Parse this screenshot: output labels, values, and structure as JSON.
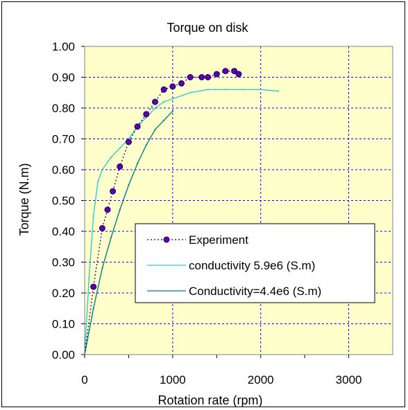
{
  "chart_data": {
    "type": "line",
    "title": "Torque on disk",
    "xlabel": "Rotation rate (rpm)",
    "ylabel": "Torque (N.m)",
    "xlim": [
      0,
      3500
    ],
    "ylim": [
      0,
      1.0
    ],
    "x_ticks": [
      "0",
      "1000",
      "2000",
      "3000"
    ],
    "y_ticks": [
      "0.00",
      "0.10",
      "0.20",
      "0.30",
      "0.40",
      "0.50",
      "0.60",
      "0.70",
      "0.80",
      "0.90",
      "1.00"
    ],
    "grid": true,
    "grid_style": "dashed",
    "plot_background": "#ffffcc",
    "legend_position": "lower-center",
    "series": [
      {
        "name": "Experiment",
        "color": "#000080",
        "marker_color": "#660099",
        "line_style": "dotted",
        "marker": "circle",
        "x": [
          0,
          100,
          200,
          260,
          320,
          400,
          500,
          600,
          700,
          800,
          900,
          1000,
          1100,
          1200,
          1330,
          1400,
          1500,
          1600,
          1700,
          1750
        ],
        "y": [
          0.0,
          0.22,
          0.41,
          0.47,
          0.53,
          0.61,
          0.69,
          0.74,
          0.78,
          0.82,
          0.86,
          0.87,
          0.88,
          0.9,
          0.9,
          0.9,
          0.91,
          0.92,
          0.92,
          0.91
        ]
      },
      {
        "name": "conductivity 5.9e6 (S.m)",
        "color": "#33cccc",
        "line_style": "solid",
        "marker": "none",
        "x": [
          0,
          50,
          100,
          150,
          200,
          300,
          400,
          500,
          600,
          700,
          800,
          900,
          1000,
          1200,
          1400,
          1600,
          1800,
          2000,
          2200
        ],
        "y": [
          0.0,
          0.25,
          0.45,
          0.56,
          0.6,
          0.64,
          0.67,
          0.7,
          0.74,
          0.77,
          0.8,
          0.82,
          0.83,
          0.85,
          0.86,
          0.86,
          0.86,
          0.86,
          0.855
        ]
      },
      {
        "name": "Conductivity=4.4e6 (S.m)",
        "color": "#008080",
        "line_style": "solid",
        "marker": "none",
        "x": [
          0,
          100,
          200,
          300,
          400,
          500,
          600,
          700,
          800,
          900,
          1000
        ],
        "y": [
          0.0,
          0.15,
          0.28,
          0.38,
          0.47,
          0.55,
          0.62,
          0.68,
          0.73,
          0.76,
          0.79
        ]
      }
    ]
  }
}
